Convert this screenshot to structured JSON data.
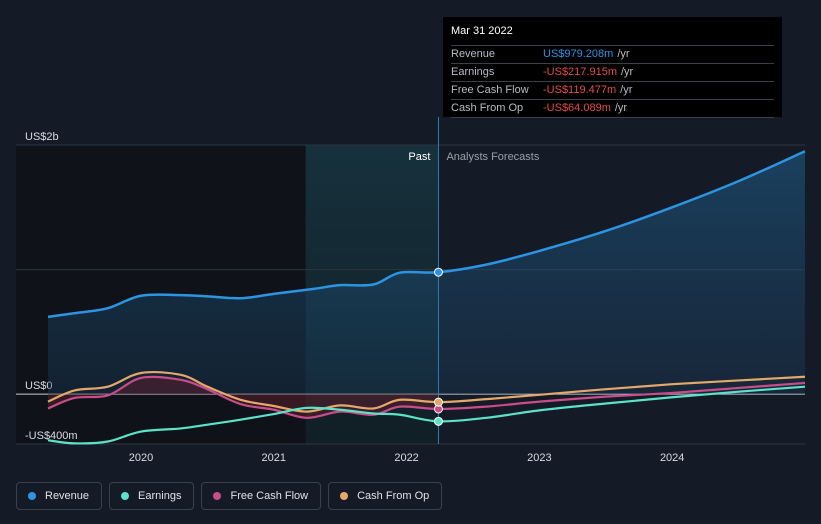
{
  "chart_data": {
    "type": "line",
    "title": "",
    "ylabel": "",
    "ylim": [
      -400,
      2000
    ],
    "xlim": [
      2019.3,
      2025.0
    ],
    "y_ticks": [
      {
        "value": 2000,
        "label": "US$2b"
      },
      {
        "value": 0,
        "label": "US$0"
      },
      {
        "value": -400,
        "label": "-US$400m"
      }
    ],
    "x_ticks": [
      {
        "value": 2020.0,
        "label": "2020"
      },
      {
        "value": 2021.0,
        "label": "2021"
      },
      {
        "value": 2022.0,
        "label": "2022"
      },
      {
        "value": 2023.0,
        "label": "2023"
      },
      {
        "value": 2024.0,
        "label": "2024"
      }
    ],
    "past_label": "Past",
    "forecast_label": "Analysts Forecasts",
    "past_end": 2022.24,
    "highlight_start": 2021.24,
    "series": [
      {
        "name": "Revenue",
        "color": "#2d94e2",
        "points": [
          [
            2019.3,
            620
          ],
          [
            2019.5,
            650
          ],
          [
            2019.75,
            690
          ],
          [
            2020.0,
            790
          ],
          [
            2020.3,
            795
          ],
          [
            2020.5,
            785
          ],
          [
            2020.75,
            770
          ],
          [
            2021.0,
            805
          ],
          [
            2021.3,
            845
          ],
          [
            2021.5,
            875
          ],
          [
            2021.75,
            880
          ],
          [
            2021.95,
            975
          ],
          [
            2022.24,
            979
          ],
          [
            2022.6,
            1040
          ],
          [
            2023.0,
            1150
          ],
          [
            2023.5,
            1310
          ],
          [
            2024.0,
            1500
          ],
          [
            2024.5,
            1710
          ],
          [
            2025.0,
            1950
          ]
        ]
      },
      {
        "name": "Earnings",
        "color": "#5ce2c8",
        "points": [
          [
            2019.3,
            -370
          ],
          [
            2019.5,
            -395
          ],
          [
            2019.75,
            -380
          ],
          [
            2020.0,
            -300
          ],
          [
            2020.3,
            -275
          ],
          [
            2020.5,
            -245
          ],
          [
            2020.75,
            -205
          ],
          [
            2021.0,
            -160
          ],
          [
            2021.25,
            -110
          ],
          [
            2021.5,
            -125
          ],
          [
            2021.75,
            -155
          ],
          [
            2021.95,
            -165
          ],
          [
            2022.24,
            -218
          ],
          [
            2022.6,
            -190
          ],
          [
            2023.0,
            -130
          ],
          [
            2023.5,
            -75
          ],
          [
            2024.0,
            -25
          ],
          [
            2024.5,
            20
          ],
          [
            2025.0,
            60
          ]
        ]
      },
      {
        "name": "Free Cash Flow",
        "color": "#c94d8a",
        "points": [
          [
            2019.3,
            -115
          ],
          [
            2019.5,
            -30
          ],
          [
            2019.75,
            -10
          ],
          [
            2020.0,
            130
          ],
          [
            2020.3,
            115
          ],
          [
            2020.5,
            40
          ],
          [
            2020.75,
            -80
          ],
          [
            2021.0,
            -125
          ],
          [
            2021.25,
            -190
          ],
          [
            2021.5,
            -140
          ],
          [
            2021.75,
            -165
          ],
          [
            2021.95,
            -100
          ],
          [
            2022.24,
            -119
          ],
          [
            2022.6,
            -100
          ],
          [
            2023.0,
            -60
          ],
          [
            2023.5,
            -20
          ],
          [
            2024.0,
            10
          ],
          [
            2024.5,
            50
          ],
          [
            2025.0,
            90
          ]
        ]
      },
      {
        "name": "Cash From Op",
        "color": "#e4a96a",
        "points": [
          [
            2019.3,
            -60
          ],
          [
            2019.5,
            30
          ],
          [
            2019.75,
            60
          ],
          [
            2020.0,
            170
          ],
          [
            2020.3,
            155
          ],
          [
            2020.5,
            60
          ],
          [
            2020.75,
            -45
          ],
          [
            2021.0,
            -95
          ],
          [
            2021.25,
            -140
          ],
          [
            2021.5,
            -90
          ],
          [
            2021.75,
            -115
          ],
          [
            2021.95,
            -45
          ],
          [
            2022.24,
            -64
          ],
          [
            2022.6,
            -40
          ],
          [
            2023.0,
            -5
          ],
          [
            2023.5,
            40
          ],
          [
            2024.0,
            80
          ],
          [
            2024.5,
            110
          ],
          [
            2025.0,
            140
          ]
        ]
      }
    ]
  },
  "tooltip": {
    "date": "Mar 31 2022",
    "rows": [
      {
        "label": "Revenue",
        "value": "US$979.208m",
        "unit": "/yr",
        "color": "#2d94e2"
      },
      {
        "label": "Earnings",
        "value": "-US$217.915m",
        "unit": "/yr",
        "color": "#e34b4b"
      },
      {
        "label": "Free Cash Flow",
        "value": "-US$119.477m",
        "unit": "/yr",
        "color": "#e34b4b"
      },
      {
        "label": "Cash From Op",
        "value": "-US$64.089m",
        "unit": "/yr",
        "color": "#e34b4b"
      }
    ]
  },
  "legend": [
    {
      "label": "Revenue",
      "color": "#2d94e2"
    },
    {
      "label": "Earnings",
      "color": "#5ce2c8"
    },
    {
      "label": "Free Cash Flow",
      "color": "#c94d8a"
    },
    {
      "label": "Cash From Op",
      "color": "#e4a96a"
    }
  ]
}
